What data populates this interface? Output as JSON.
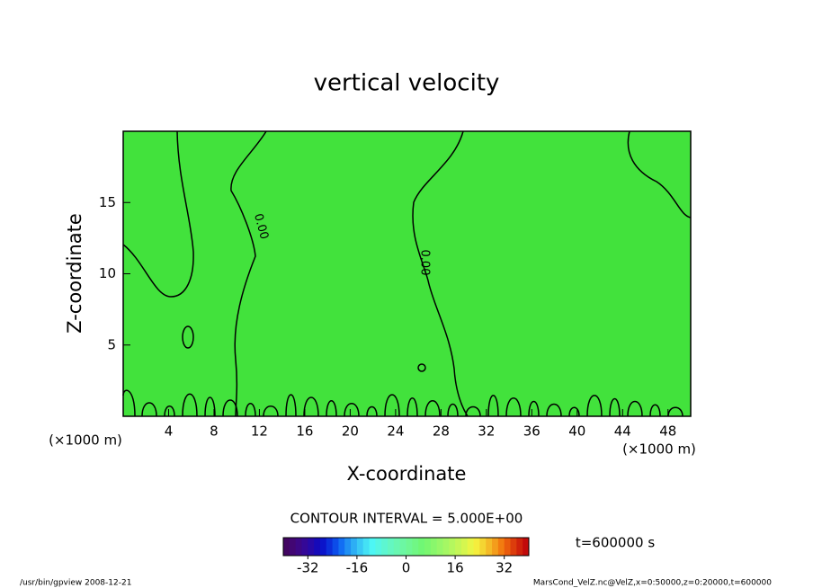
{
  "chart_data": {
    "type": "contour",
    "title": "vertical velocity",
    "x_label": "X-coordinate",
    "y_label": "Z-coordinate",
    "x_unit_left": "(×1000 m)",
    "x_unit_right": "(×1000 m)",
    "xlim": [
      0,
      50
    ],
    "xticks": [
      4,
      8,
      12,
      16,
      20,
      24,
      28,
      32,
      36,
      40,
      44,
      48
    ],
    "ylim": [
      0,
      20
    ],
    "yticks": [
      5,
      10,
      15
    ],
    "fill_color": "#42e23c",
    "contour_levels": [
      {
        "value": 0,
        "label": "0.00"
      }
    ],
    "contour_interval_text": "CONTOUR INTERVAL = 5.000E+00",
    "time_text": "t=600000 s",
    "clim": [
      -40,
      40
    ],
    "cticks": [
      -32,
      -16,
      0,
      16,
      32
    ],
    "footer_left": "/usr/bin/gpview   2008-12-21",
    "footer_right": "MarsCond_VelZ.nc@VelZ,x=0:50000,z=0:20000,t=600000"
  }
}
